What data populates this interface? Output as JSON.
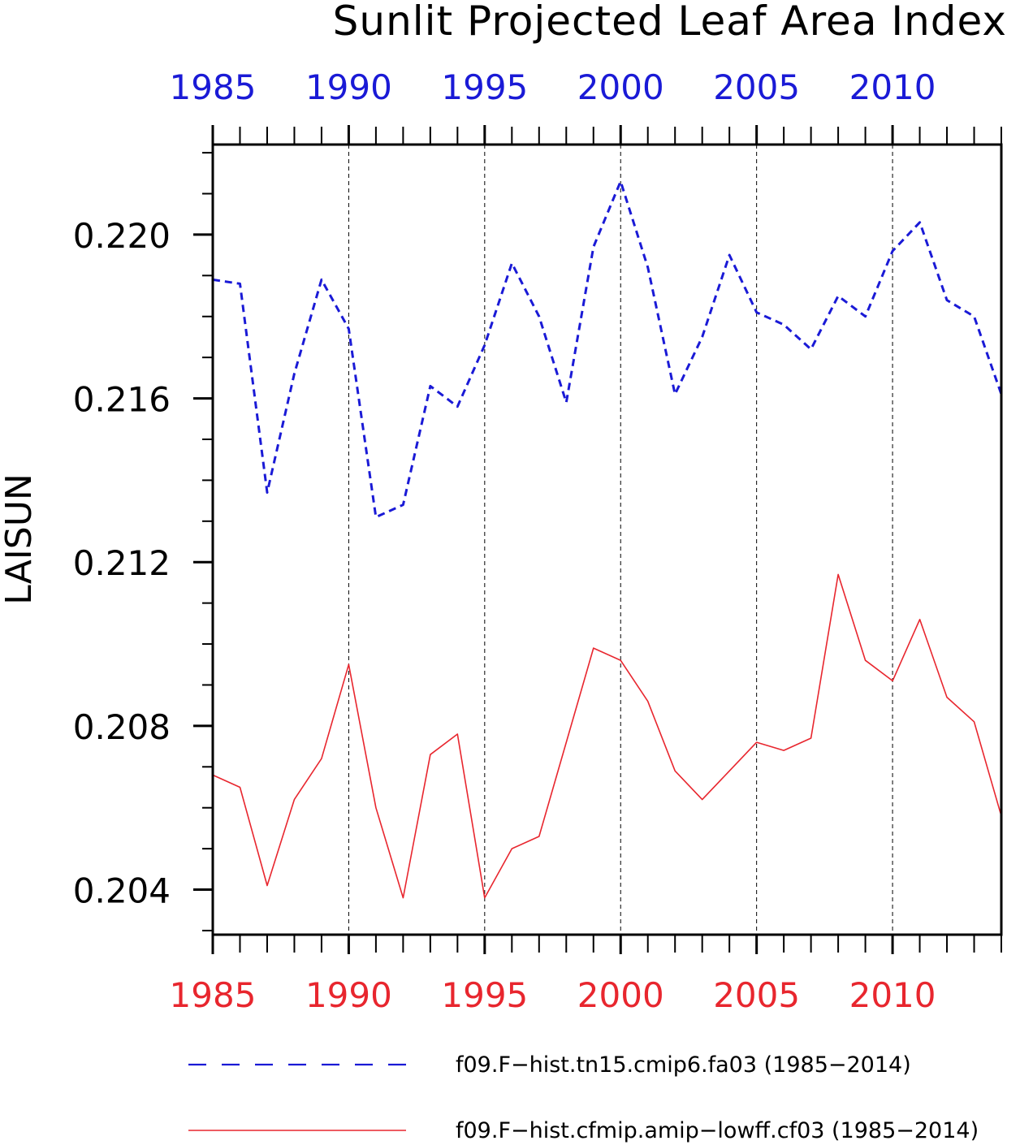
{
  "chart_data": {
    "type": "line",
    "title": "Sunlit Projected Leaf Area Index",
    "ylabel": "LAISUN",
    "xlabel": "",
    "x": [
      1985,
      1986,
      1987,
      1988,
      1989,
      1990,
      1991,
      1992,
      1993,
      1994,
      1995,
      1996,
      1997,
      1998,
      1999,
      2000,
      2001,
      2002,
      2003,
      2004,
      2005,
      2006,
      2007,
      2008,
      2009,
      2010,
      2011,
      2012,
      2013,
      2014
    ],
    "xlim": [
      1985,
      2014
    ],
    "ylim": [
      0.2029,
      0.2222
    ],
    "x_ticks": [
      "1985",
      "1990",
      "1995",
      "2000",
      "2005",
      "2010"
    ],
    "y_ticks": [
      "0.204",
      "0.208",
      "0.212",
      "0.216",
      "0.220"
    ],
    "grid": "vertical dashed lines at major x ticks",
    "top_axis_color": "#1a1ad6",
    "bottom_axis_color": "#e8262e",
    "series": [
      {
        "name": "f09.F−hist.tn15.cmip6.fa03 (1985−2014)",
        "color": "#1a1ad6",
        "style": "dashed",
        "values": [
          0.2189,
          0.2188,
          0.2137,
          0.2166,
          0.2189,
          0.2177,
          0.2131,
          0.2134,
          0.2163,
          0.2158,
          0.2173,
          0.2193,
          0.218,
          0.2159,
          0.2197,
          0.2213,
          0.2192,
          0.2161,
          0.2175,
          0.2195,
          0.2181,
          0.2178,
          0.2172,
          0.2185,
          0.218,
          0.2196,
          0.2203,
          0.2184,
          0.218,
          0.2161
        ]
      },
      {
        "name": "f09.F−hist.cfmip.amip−lowff.cf03 (1985−2014)",
        "color": "#e8262e",
        "style": "solid",
        "values": [
          0.2068,
          0.2065,
          0.2041,
          0.2062,
          0.2072,
          0.2095,
          0.206,
          0.2038,
          0.2073,
          0.2078,
          0.2038,
          0.205,
          0.2053,
          0.2076,
          0.2099,
          0.2096,
          0.2086,
          0.2069,
          0.2062,
          0.2069,
          0.2076,
          0.2074,
          0.2077,
          0.2117,
          0.2096,
          0.2091,
          0.2106,
          0.2087,
          0.2081,
          0.2058
        ]
      }
    ]
  }
}
